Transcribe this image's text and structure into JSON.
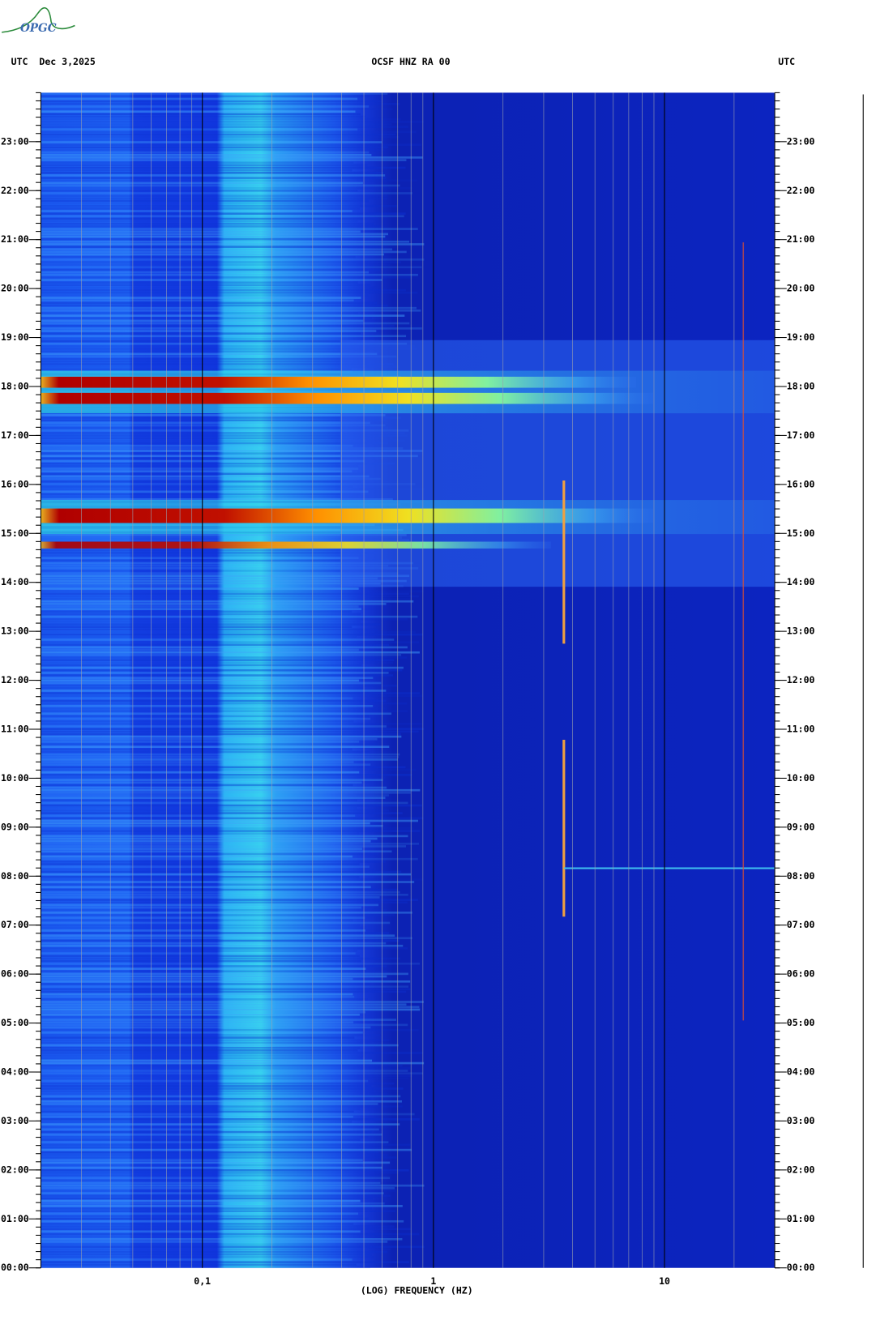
{
  "chart_data": {
    "type": "spectrogram",
    "logo": "OPGC",
    "date_label": "UTC  Dec 3,2025",
    "title": "OCSF HNZ RA 00",
    "right_label": "UTC",
    "xlabel": "(LOG) FREQUENCY (HZ)",
    "xscale": "log",
    "xlim": [
      0.02,
      30
    ],
    "xticks": [
      {
        "value": 0.1,
        "label": "0,1"
      },
      1,
      10
    ],
    "ylim": [
      0,
      24
    ],
    "yticks": [
      {
        "value": 0,
        "label": "00:00"
      },
      {
        "value": 1,
        "label": "01:00"
      },
      {
        "value": 2,
        "label": "02:00"
      },
      {
        "value": 3,
        "label": "03:00"
      },
      {
        "value": 4,
        "label": "04:00"
      },
      {
        "value": 5,
        "label": "05:00"
      },
      {
        "value": 6,
        "label": "06:00"
      },
      {
        "value": 7,
        "label": "07:00"
      },
      {
        "value": 8,
        "label": "08:00"
      },
      {
        "value": 9,
        "label": "09:00"
      },
      {
        "value": 10,
        "label": "10:00"
      },
      {
        "value": 11,
        "label": "11:00"
      },
      {
        "value": 12,
        "label": "12:00"
      },
      {
        "value": 13,
        "label": "13:00"
      },
      {
        "value": 14,
        "label": "14:00"
      },
      {
        "value": 15,
        "label": "15:00"
      },
      {
        "value": 16,
        "label": "16:00"
      },
      {
        "value": 17,
        "label": "17:00"
      },
      {
        "value": 18,
        "label": "18:00"
      },
      {
        "value": 19,
        "label": "19:00"
      },
      {
        "value": 20,
        "label": "20:00"
      },
      {
        "value": 21,
        "label": "21:00"
      },
      {
        "value": 22,
        "label": "22:00"
      },
      {
        "value": 23,
        "label": "23:00"
      }
    ]
  }
}
